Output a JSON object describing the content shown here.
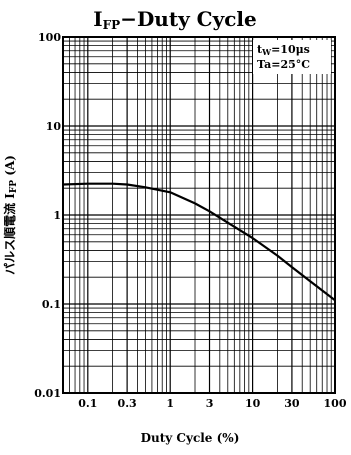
{
  "chart_data": {
    "type": "line",
    "title": {
      "main_prefix": "I",
      "main_sub": "FP",
      "main_suffix": "−Duty  Cycle"
    },
    "xlabel": "Duty Cycle   (%)",
    "ylabel": {
      "text": "パルス順電流  I",
      "sub": "FP",
      "unit": "  (A)"
    },
    "x_scale": "log",
    "y_scale": "log",
    "xlim": [
      0.05,
      100
    ],
    "ylim": [
      0.01,
      100
    ],
    "x_ticks": [
      {
        "value": 0.1,
        "label": "0.1"
      },
      {
        "value": 0.3,
        "label": "0.3"
      },
      {
        "value": 1,
        "label": "1"
      },
      {
        "value": 3,
        "label": "3"
      },
      {
        "value": 10,
        "label": "10"
      },
      {
        "value": 30,
        "label": "30"
      },
      {
        "value": 100,
        "label": "100"
      }
    ],
    "y_ticks": [
      {
        "value": 0.01,
        "label": "0.01"
      },
      {
        "value": 0.1,
        "label": "0.1"
      },
      {
        "value": 1,
        "label": "1"
      },
      {
        "value": 10,
        "label": "10"
      },
      {
        "value": 100,
        "label": "100"
      }
    ],
    "grid": true,
    "annotation": {
      "line1_prefix": "t",
      "line1_sub": "W",
      "line1_suffix": "=10μs",
      "line2": "Ta=25°C"
    },
    "series": [
      {
        "x": [
          0.05,
          0.1,
          0.2,
          0.3,
          0.5,
          1,
          2,
          3,
          5,
          10,
          20,
          30,
          50,
          100
        ],
        "y": [
          2.2,
          2.25,
          2.25,
          2.2,
          2.05,
          1.8,
          1.35,
          1.1,
          0.82,
          0.55,
          0.35,
          0.26,
          0.18,
          0.11
        ]
      }
    ],
    "line_color": "#000000"
  }
}
